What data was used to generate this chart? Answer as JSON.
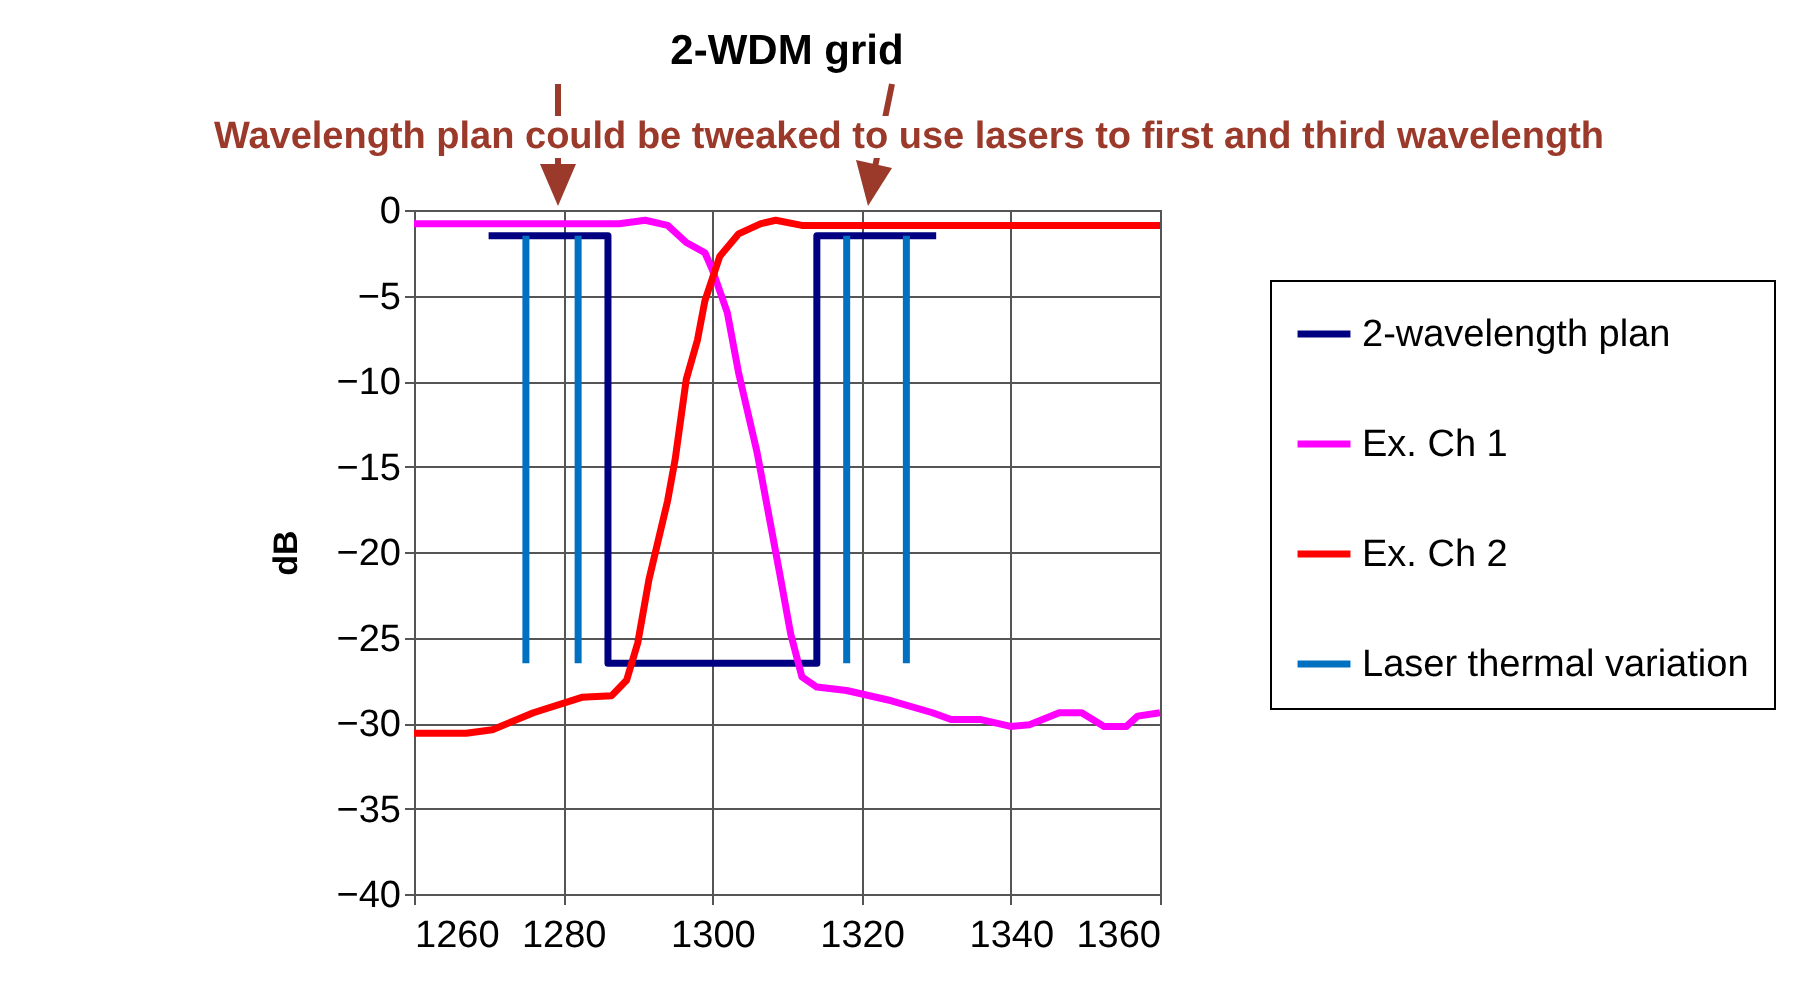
{
  "chart_data": {
    "type": "line",
    "title": "2-WDM grid",
    "ylabel": "dB",
    "annotations": [
      "Wavelength plan could be tweaked to use lasers to first and third wavelength"
    ],
    "xlim": [
      1260,
      1360
    ],
    "xticks": [
      1260,
      1280,
      1300,
      1320,
      1340,
      1360
    ],
    "ylim": [
      -40,
      0
    ],
    "yticks": [
      -40,
      -35,
      -30,
      -25,
      -20,
      -15,
      -10,
      -5,
      0
    ],
    "grid": true,
    "legend": "right",
    "marker": "none",
    "line_style": "solid",
    "series": [
      {
        "name": "2-wavelength plan",
        "color": "#000080",
        "x": [
          1270,
          1286,
          1286,
          1314,
          1314,
          1330
        ],
        "values": [
          -1.5,
          -1.5,
          -26.5,
          -26.5,
          -1.5,
          -1.5
        ]
      },
      {
        "name": "Ex. Ch 1",
        "color": "#ff00ff",
        "x": [
          1260,
          1287.5,
          1291,
          1294,
          1296.5,
          1299,
          1300,
          1302,
          1303.5,
          1306,
          1309,
          1310.5,
          1312,
          1314,
          1318,
          1324,
          1329.5,
          1332,
          1336,
          1340,
          1342.5,
          1346.5,
          1349.5,
          1352.5,
          1355.5,
          1357,
          1360
        ],
        "values": [
          -0.8,
          -0.8,
          -0.6,
          -0.9,
          -1.9,
          -2.5,
          -3.5,
          -6,
          -9.5,
          -14.2,
          -21.2,
          -24.8,
          -27.3,
          -27.9,
          -28.1,
          -28.7,
          -29.4,
          -29.8,
          -29.8,
          -30.2,
          -30.1,
          -29.4,
          -29.4,
          -30.2,
          -30.2,
          -29.6,
          -29.4
        ]
      },
      {
        "name": "Ex. Ch 2",
        "color": "#ff0000",
        "x": [
          1260,
          1267,
          1270.5,
          1276,
          1282.5,
          1286.5,
          1288.5,
          1290,
          1291.5,
          1294,
          1295,
          1296.5,
          1298,
          1299,
          1301,
          1303.5,
          1306.5,
          1308.5,
          1312,
          1360
        ],
        "values": [
          -30.6,
          -30.6,
          -30.4,
          -29.4,
          -28.5,
          -28.4,
          -27.5,
          -25.3,
          -21.6,
          -17,
          -14.6,
          -9.9,
          -7.6,
          -5.3,
          -2.7,
          -1.4,
          -0.8,
          -0.6,
          -0.9,
          -0.9
        ]
      },
      {
        "name": "Laser thermal variation",
        "color": "#0070c0",
        "x": [
          1275,
          1275,
          null,
          1282,
          1282,
          null,
          1318,
          1318,
          null,
          1326,
          1326
        ],
        "values": [
          -1.5,
          -26.5,
          null,
          -1.5,
          -26.5,
          null,
          -1.5,
          -26.5,
          null,
          -1.5,
          -26.5
        ]
      }
    ]
  }
}
